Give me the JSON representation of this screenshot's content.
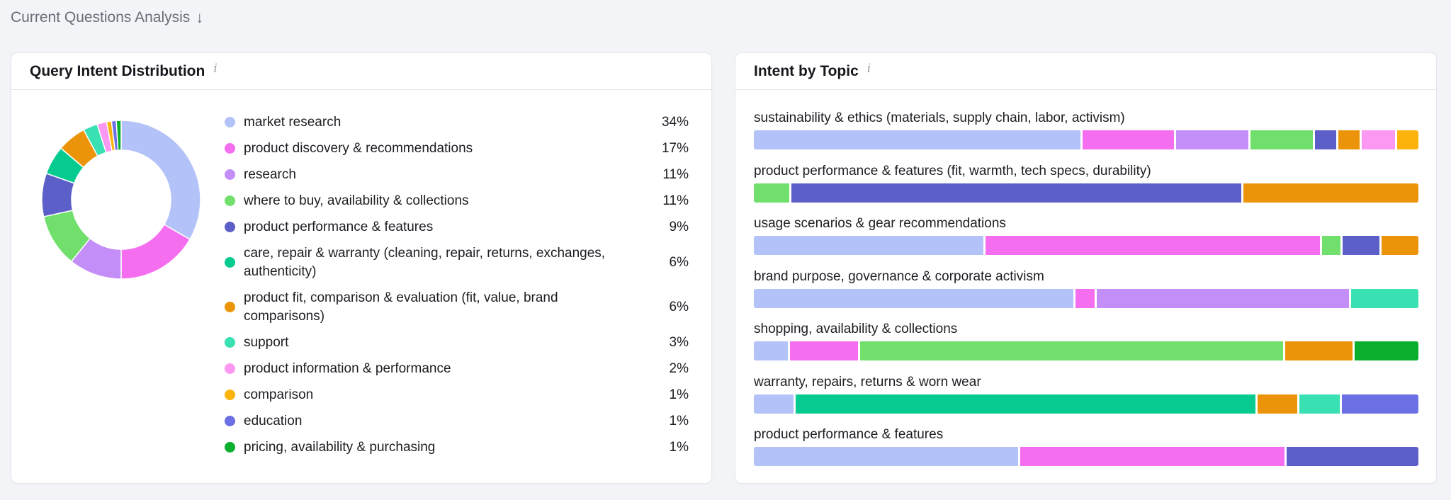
{
  "section": {
    "title": "Current Questions Analysis",
    "arrow": "↓"
  },
  "left_card": {
    "title": "Query Intent Distribution",
    "info": "i"
  },
  "right_card": {
    "title": "Intent by Topic",
    "info": "i"
  },
  "colors": {
    "market research": "#b3c2f8",
    "product discovery & recommendations": "#f66ef0",
    "research": "#c38ef7",
    "where to buy, availability & collections": "#70df6c",
    "product performance & features": "#5d5fc8",
    "care, repair & warranty": "#06cb91",
    "product fit, comparison & evaluation": "#ec9409",
    "support": "#38e0b2",
    "product information & performance": "#fb98f2",
    "comparison": "#fcb30c",
    "education": "#6c70e4",
    "pricing, availability & purchasing": "#0baf2e"
  },
  "chart_data": [
    {
      "type": "pie",
      "title": "Query Intent Distribution",
      "donut": true,
      "categories": [
        "market research",
        "product discovery & recommendations",
        "research",
        "where to buy, availability & collections",
        "product performance & features",
        "care, repair & warranty (cleaning, repair, returns, exchanges, authenticity)",
        "product fit, comparison & evaluation (fit, value, brand comparisons)",
        "support",
        "product information & performance",
        "comparison",
        "education",
        "pricing, availability & purchasing"
      ],
      "values": [
        34,
        17,
        11,
        11,
        9,
        6,
        6,
        3,
        2,
        1,
        1,
        1
      ],
      "labels": [
        "34%",
        "17%",
        "11%",
        "11%",
        "9%",
        "6%",
        "6%",
        "3%",
        "2%",
        "1%",
        "1%",
        "1%"
      ],
      "colors": [
        "#b3c2f8",
        "#f66ef0",
        "#c38ef7",
        "#70df6c",
        "#5d5fc8",
        "#06cb91",
        "#ec9409",
        "#38e0b2",
        "#fb98f2",
        "#fcb30c",
        "#6c70e4",
        "#0baf2e"
      ]
    },
    {
      "type": "bar",
      "stacked": true,
      "orientation": "horizontal",
      "title": "Intent by Topic",
      "categories": [
        "sustainability & ethics (materials, supply chain, labor, activism)",
        "product performance & features (fit, warmth, tech specs, durability)",
        "usage scenarios & gear recommendations",
        "brand purpose, governance & corporate activism",
        "shopping, availability & collections",
        "warranty, repairs, returns & worn wear",
        "product performance & features"
      ],
      "rows": [
        {
          "segments": [
            {
              "color": "#b3c2f8",
              "value": 50
            },
            {
              "color": "#f66ef0",
              "value": 14
            },
            {
              "color": "#c38ef7",
              "value": 11
            },
            {
              "color": "#70df6c",
              "value": 9.5
            },
            {
              "color": "#5d5fc8",
              "value": 3.3
            },
            {
              "color": "#ec9409",
              "value": 3.3
            },
            {
              "color": "#fb98f2",
              "value": 5
            },
            {
              "color": "#fcb30c",
              "value": 3.3
            }
          ]
        },
        {
          "segments": [
            {
              "color": "#70df6c",
              "value": 5.4
            },
            {
              "color": "#5d5fc8",
              "value": 68.1
            },
            {
              "color": "#ec9409",
              "value": 26.5
            }
          ]
        },
        {
          "segments": [
            {
              "color": "#b3c2f8",
              "value": 35
            },
            {
              "color": "#f66ef0",
              "value": 51
            },
            {
              "color": "#70df6c",
              "value": 2.8
            },
            {
              "color": "#5d5fc8",
              "value": 5.6
            },
            {
              "color": "#ec9409",
              "value": 5.6
            }
          ]
        },
        {
          "segments": [
            {
              "color": "#b3c2f8",
              "value": 48.5
            },
            {
              "color": "#f66ef0",
              "value": 2.9
            },
            {
              "color": "#c38ef7",
              "value": 38.4
            },
            {
              "color": "#38e0b2",
              "value": 10.2
            }
          ]
        },
        {
          "segments": [
            {
              "color": "#b3c2f8",
              "value": 5.2
            },
            {
              "color": "#f66ef0",
              "value": 10.3
            },
            {
              "color": "#70df6c",
              "value": 64.5
            },
            {
              "color": "#ec9409",
              "value": 10.3
            },
            {
              "color": "#0baf2e",
              "value": 9.7
            }
          ]
        },
        {
          "segments": [
            {
              "color": "#b3c2f8",
              "value": 6.1
            },
            {
              "color": "#06cb91",
              "value": 70
            },
            {
              "color": "#ec9409",
              "value": 6.1
            },
            {
              "color": "#38e0b2",
              "value": 6.1
            },
            {
              "color": "#6c70e4",
              "value": 11.7
            }
          ]
        },
        {
          "segments": [
            {
              "color": "#b3c2f8",
              "value": 40
            },
            {
              "color": "#f66ef0",
              "value": 40
            },
            {
              "color": "#5d5fc8",
              "value": 20
            }
          ]
        }
      ]
    }
  ]
}
